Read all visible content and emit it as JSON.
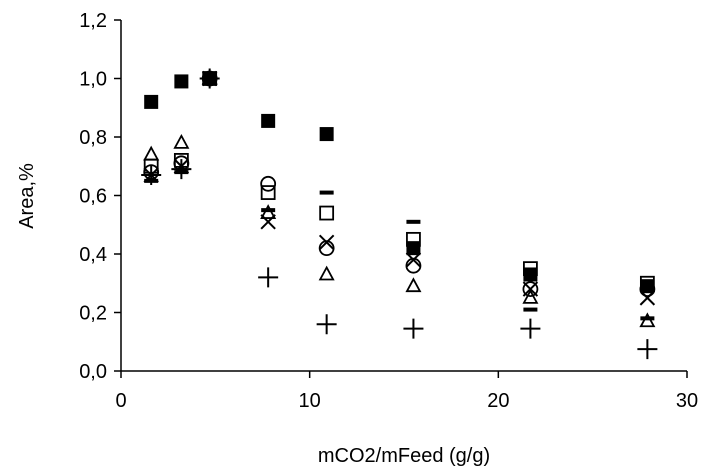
{
  "chart_data": {
    "type": "scatter",
    "title": "",
    "xlabel": "mCO2/mFeed (g/g)",
    "ylabel": "Area,%",
    "xlim": [
      0,
      30
    ],
    "ylim": [
      0,
      1.2
    ],
    "x_ticks": [
      "0",
      "10",
      "20",
      "30"
    ],
    "y_ticks": [
      "0,0",
      "0,2",
      "0,4",
      "0,6",
      "0,8",
      "1,0",
      "1,2"
    ],
    "grid": false,
    "legend": "none",
    "series": [
      {
        "marker": "filled-square",
        "color": "#000000",
        "x": [
          1.6,
          3.2,
          4.7,
          7.8,
          10.9,
          15.5,
          21.7,
          27.9
        ],
        "y": [
          0.92,
          0.99,
          1.0,
          0.855,
          0.81,
          0.42,
          0.33,
          0.29
        ]
      },
      {
        "marker": "open-square",
        "color": "#000000",
        "x": [
          1.6,
          3.2,
          4.7,
          7.8,
          10.9,
          15.5,
          21.7,
          27.9
        ],
        "y": [
          0.7,
          0.72,
          1.0,
          0.61,
          0.54,
          0.45,
          0.35,
          0.3
        ]
      },
      {
        "marker": "open-triangle",
        "color": "#000000",
        "x": [
          1.6,
          3.2,
          4.7,
          7.8,
          10.9,
          15.5,
          21.7,
          27.9
        ],
        "y": [
          0.74,
          0.78,
          1.0,
          0.54,
          0.33,
          0.29,
          0.25,
          0.17
        ]
      },
      {
        "marker": "x-cross",
        "color": "#000000",
        "x": [
          1.6,
          3.2,
          4.7,
          7.8,
          10.9,
          15.5,
          21.7,
          27.9
        ],
        "y": [
          0.67,
          0.7,
          1.0,
          0.51,
          0.44,
          0.38,
          0.28,
          0.25
        ]
      },
      {
        "marker": "open-circle",
        "color": "#000000",
        "x": [
          1.6,
          3.2,
          4.7,
          7.8,
          10.9,
          15.5,
          21.7,
          27.9
        ],
        "y": [
          0.68,
          0.71,
          1.0,
          0.64,
          0.42,
          0.36,
          0.28,
          0.28
        ]
      },
      {
        "marker": "plus",
        "color": "#000000",
        "x": [
          1.6,
          3.2,
          4.7,
          7.8,
          10.9,
          15.5,
          21.7,
          27.9
        ],
        "y": [
          0.67,
          0.69,
          1.0,
          0.32,
          0.16,
          0.145,
          0.145,
          0.075
        ]
      },
      {
        "marker": "dash",
        "color": "#000000",
        "x": [
          1.6,
          3.2,
          4.7,
          7.8,
          10.9,
          15.5,
          21.7,
          27.9
        ],
        "y": [
          0.65,
          0.68,
          1.0,
          0.55,
          0.61,
          0.51,
          0.21,
          0.18
        ]
      }
    ]
  }
}
